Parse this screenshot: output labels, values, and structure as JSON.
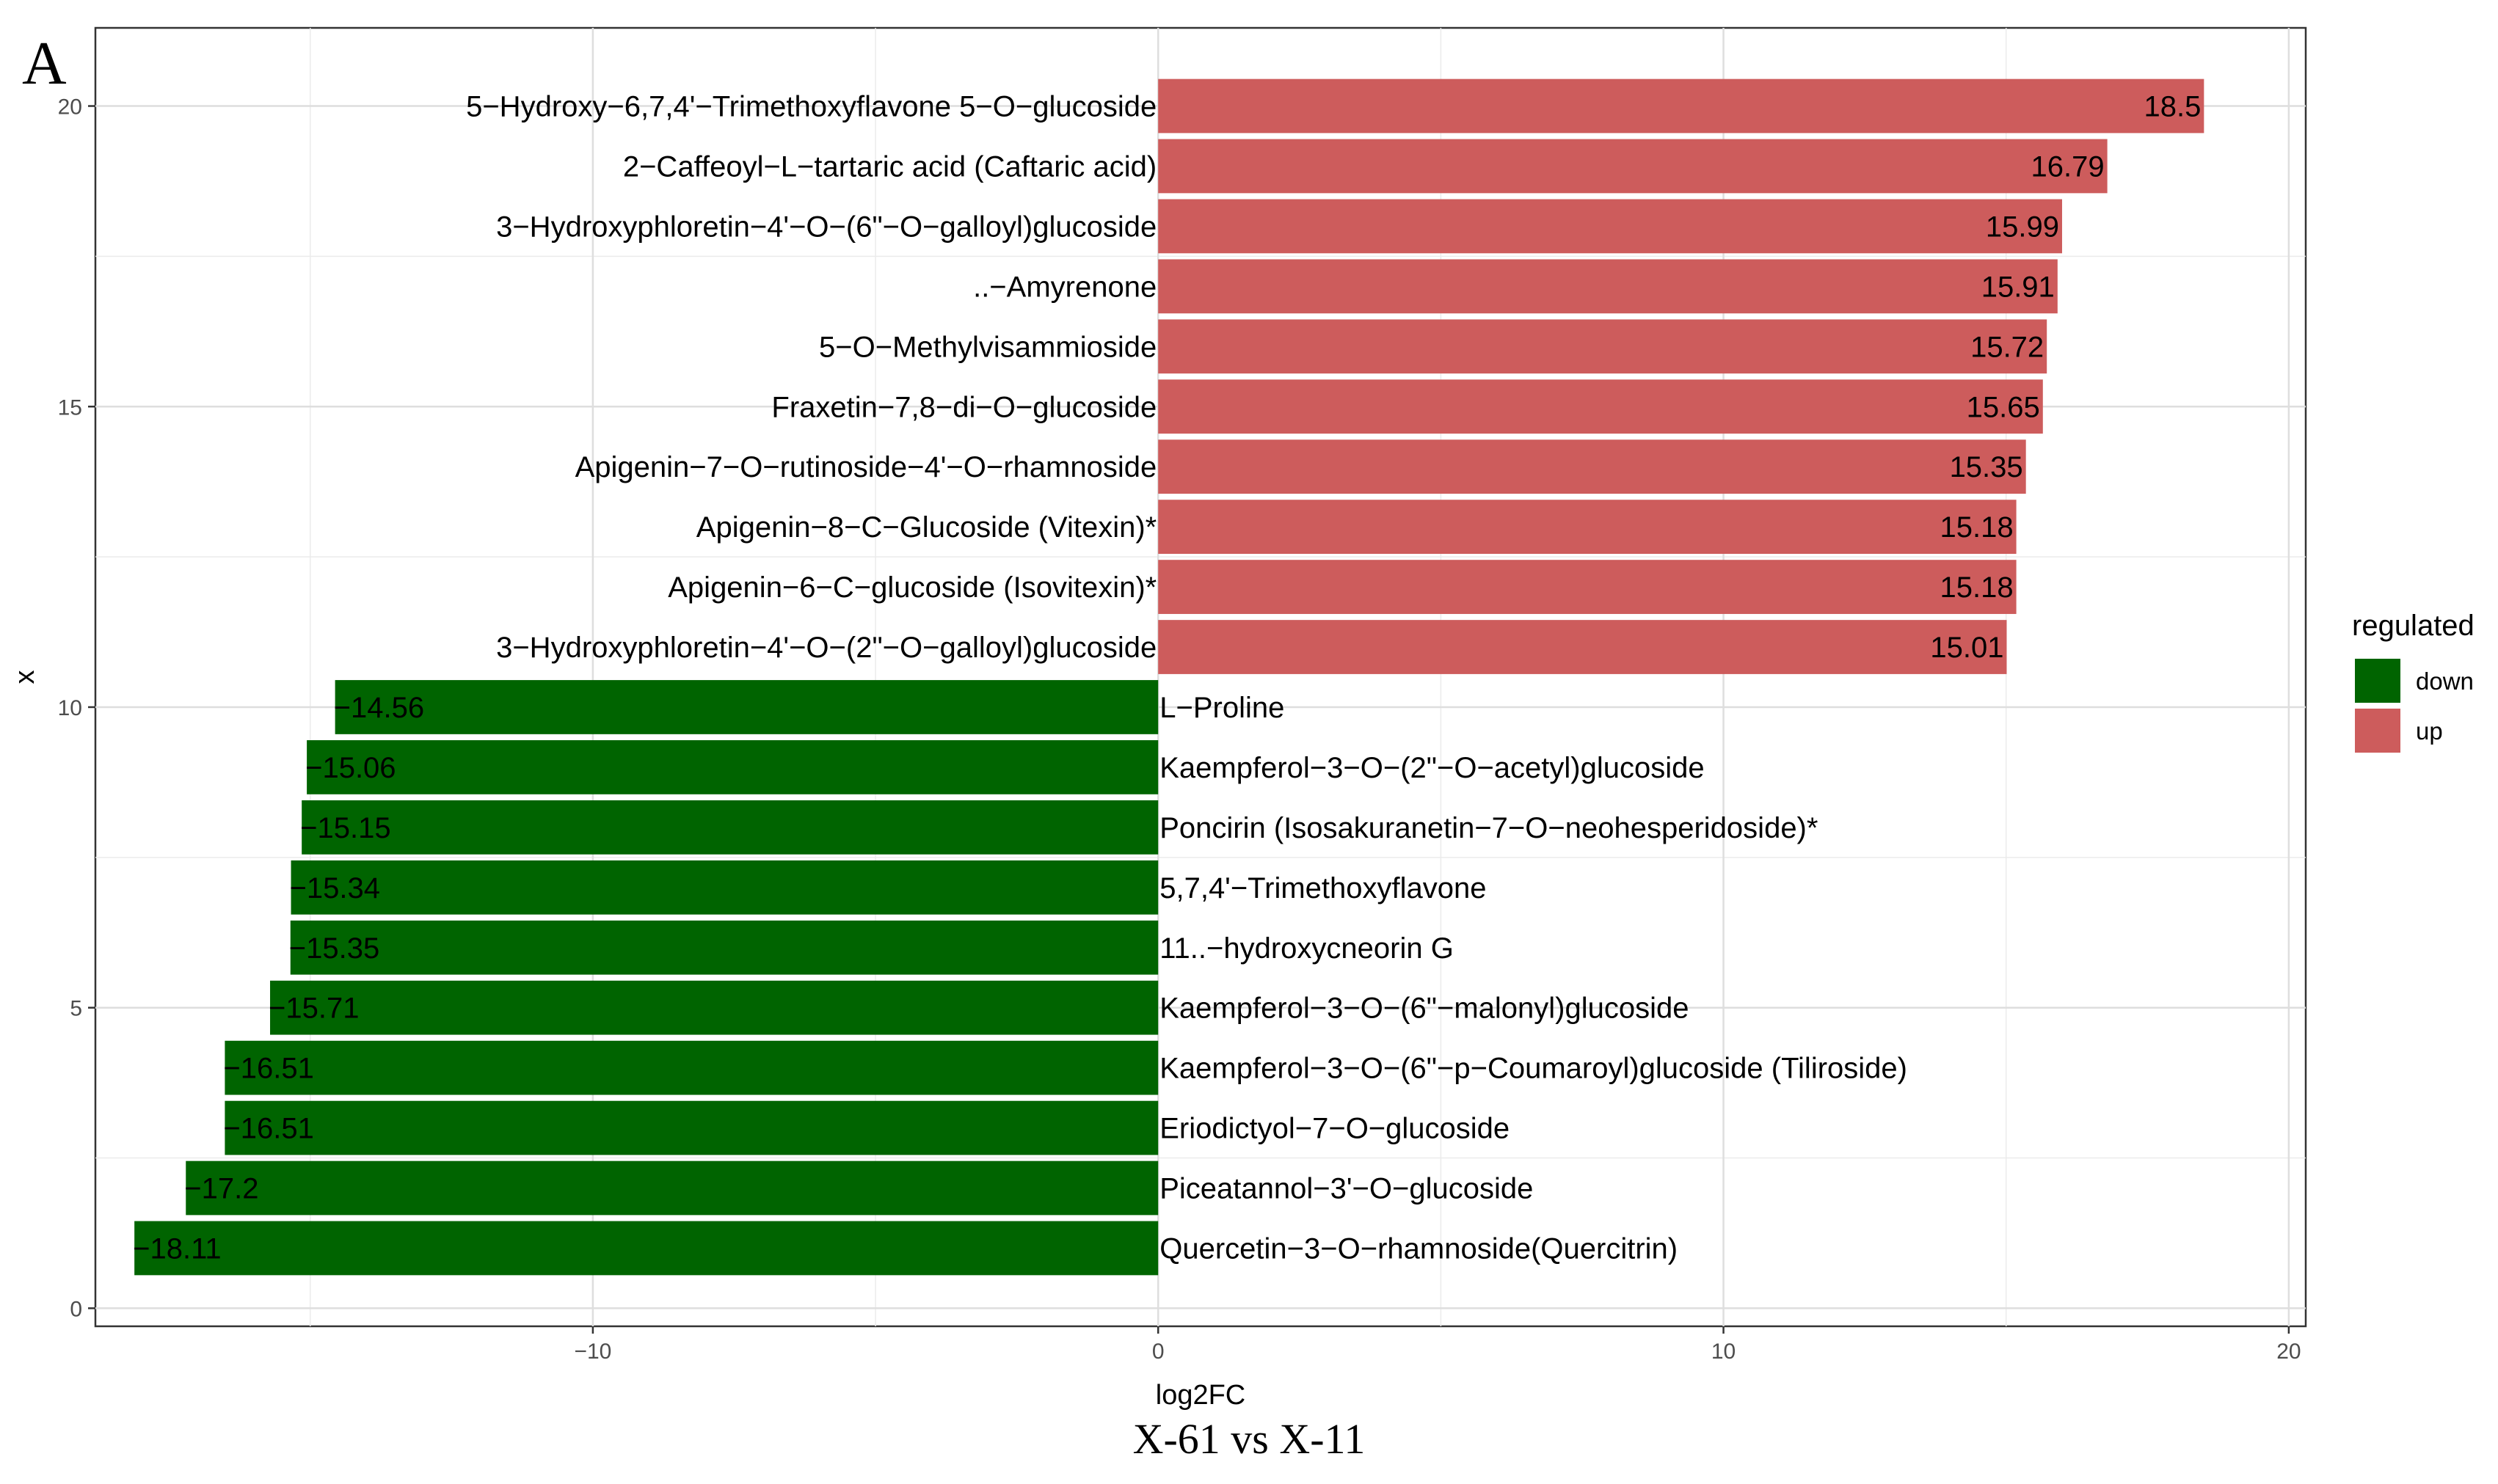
{
  "panel_letter": "A",
  "caption": "X-61 vs X-11",
  "chart_data": {
    "type": "bar",
    "orientation": "horizontal",
    "xlabel": "log2FC",
    "ylabel": "x",
    "xlim": [
      -18.8,
      20.3
    ],
    "ylim": [
      -0.3,
      21.3
    ],
    "x_ticks": [
      -10,
      0,
      10,
      20
    ],
    "x_tick_labels": [
      "−10",
      "0",
      "10",
      "20"
    ],
    "y_ticks": [
      0,
      5,
      10,
      15,
      20
    ],
    "y_tick_labels": [
      "0",
      "5",
      "10",
      "15",
      "20"
    ],
    "grid": true,
    "colors": {
      "up": "#cd5c5c",
      "down": "#006400"
    },
    "legend": {
      "title": "regulated",
      "position": "right",
      "entries": [
        {
          "label": "down",
          "key": "down"
        },
        {
          "label": "up",
          "key": "up"
        }
      ]
    },
    "bars": [
      {
        "y": 20,
        "value": 18.5,
        "label": "18.5",
        "name": "5−Hydroxy−6,7,4'−Trimethoxyflavone 5−O−glucoside",
        "regulated": "up"
      },
      {
        "y": 19,
        "value": 16.79,
        "label": "16.79",
        "name": "2−Caffeoyl−L−tartaric acid (Caftaric acid)",
        "regulated": "up"
      },
      {
        "y": 18,
        "value": 15.99,
        "label": "15.99",
        "name": "3−Hydroxyphloretin−4'−O−(6\"−O−galloyl)glucoside",
        "regulated": "up"
      },
      {
        "y": 17,
        "value": 15.91,
        "label": "15.91",
        "name": "..−Amyrenone",
        "regulated": "up"
      },
      {
        "y": 16,
        "value": 15.72,
        "label": "15.72",
        "name": "5−O−Methylvisammioside",
        "regulated": "up"
      },
      {
        "y": 15,
        "value": 15.65,
        "label": "15.65",
        "name": "Fraxetin−7,8−di−O−glucoside",
        "regulated": "up"
      },
      {
        "y": 14,
        "value": 15.35,
        "label": "15.35",
        "name": "Apigenin−7−O−rutinoside−4'−O−rhamnoside",
        "regulated": "up"
      },
      {
        "y": 13,
        "value": 15.18,
        "label": "15.18",
        "name": "Apigenin−8−C−Glucoside (Vitexin)*",
        "regulated": "up"
      },
      {
        "y": 12,
        "value": 15.18,
        "label": "15.18",
        "name": "Apigenin−6−C−glucoside (Isovitexin)*",
        "regulated": "up"
      },
      {
        "y": 11,
        "value": 15.01,
        "label": "15.01",
        "name": "3−Hydroxyphloretin−4'−O−(2\"−O−galloyl)glucoside",
        "regulated": "up"
      },
      {
        "y": 10,
        "value": -14.56,
        "label": "−14.56",
        "name": "L−Proline",
        "regulated": "down"
      },
      {
        "y": 9,
        "value": -15.06,
        "label": "−15.06",
        "name": "Kaempferol−3−O−(2\"−O−acetyl)glucoside",
        "regulated": "down"
      },
      {
        "y": 8,
        "value": -15.15,
        "label": "−15.15",
        "name": "Poncirin (Isosakuranetin−7−O−neohesperidoside)*",
        "regulated": "down"
      },
      {
        "y": 7,
        "value": -15.34,
        "label": "−15.34",
        "name": "5,7,4'−Trimethoxyflavone",
        "regulated": "down"
      },
      {
        "y": 6,
        "value": -15.35,
        "label": "−15.35",
        "name": "11..−hydroxycneorin G",
        "regulated": "down"
      },
      {
        "y": 5,
        "value": -15.71,
        "label": "−15.71",
        "name": "Kaempferol−3−O−(6\"−malonyl)glucoside",
        "regulated": "down"
      },
      {
        "y": 4,
        "value": -16.51,
        "label": "−16.51",
        "name": "Kaempferol−3−O−(6\"−p−Coumaroyl)glucoside (Tiliroside)",
        "regulated": "down"
      },
      {
        "y": 3,
        "value": -16.51,
        "label": "−16.51",
        "name": "Eriodictyol−7−O−glucoside",
        "regulated": "down"
      },
      {
        "y": 2,
        "value": -17.2,
        "label": "−17.2",
        "name": "Piceatannol−3'−O−glucoside",
        "regulated": "down"
      },
      {
        "y": 1,
        "value": -18.11,
        "label": "−18.11",
        "name": "Quercetin−3−O−rhamnoside(Quercitrin)",
        "regulated": "down"
      }
    ]
  }
}
